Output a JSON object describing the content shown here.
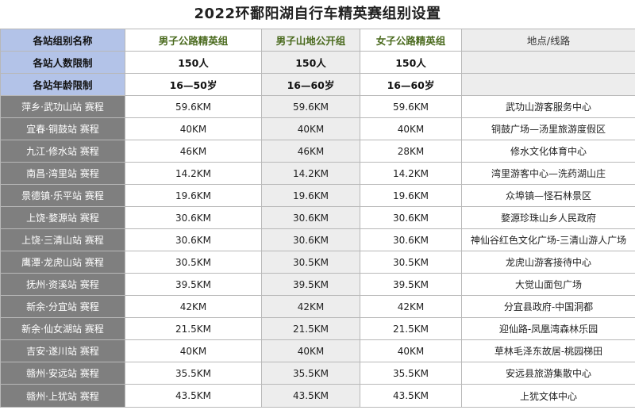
{
  "title": "2022环鄱阳湖自行车精英赛组别设置",
  "header": {
    "label": "各站组别名称",
    "groups": [
      "男子公路精英组",
      "男子山地公开组",
      "女子公路精英组"
    ],
    "location": "地点/线路"
  },
  "capacity": {
    "label": "各站人数限制",
    "values": [
      "150人",
      "150人",
      "150人"
    ]
  },
  "age": {
    "label": "各站年龄限制",
    "values": [
      "16—50岁",
      "16—60岁",
      "16—60岁"
    ]
  },
  "stations": [
    {
      "name": "萍乡·武功山站 赛程",
      "men_road": "59.6KM",
      "men_mtb": "59.6KM",
      "women_road": "59.6KM",
      "location": "武功山游客服务中心"
    },
    {
      "name": "宜春·铜鼓站 赛程",
      "men_road": "40KM",
      "men_mtb": "40KM",
      "women_road": "40KM",
      "location": "铜鼓广场—汤里旅游度假区"
    },
    {
      "name": "九江·修水站 赛程",
      "men_road": "46KM",
      "men_mtb": "46KM",
      "women_road": "28KM",
      "location": "修水文化体育中心"
    },
    {
      "name": "南昌·湾里站 赛程",
      "men_road": "14.2KM",
      "men_mtb": "14.2KM",
      "women_road": "14.2KM",
      "location": "湾里游客中心—洗药湖山庄"
    },
    {
      "name": "景德镇·乐平站 赛程",
      "men_road": "19.6KM",
      "men_mtb": "19.6KM",
      "women_road": "19.6KM",
      "location": "众埠镇—怪石林景区"
    },
    {
      "name": "上饶·婺源站 赛程",
      "men_road": "30.6KM",
      "men_mtb": "30.6KM",
      "women_road": "30.6KM",
      "location": "婺源珍珠山乡人民政府"
    },
    {
      "name": "上饶·三清山站 赛程",
      "men_road": "30.6KM",
      "men_mtb": "30.6KM",
      "women_road": "30.6KM",
      "location": "神仙谷红色文化广场-三清山游人广场"
    },
    {
      "name": "鹰潭·龙虎山站 赛程",
      "men_road": "30.5KM",
      "men_mtb": "30.5KM",
      "women_road": "30.5KM",
      "location": "龙虎山游客接待中心"
    },
    {
      "name": "抚州·资溪站 赛程",
      "men_road": "39.5KM",
      "men_mtb": "39.5KM",
      "women_road": "39.5KM",
      "location": "大觉山面包广场"
    },
    {
      "name": "新余·分宜站 赛程",
      "men_road": "42KM",
      "men_mtb": "42KM",
      "women_road": "42KM",
      "location": "分宜县政府-中国洞都"
    },
    {
      "name": "新余·仙女湖站 赛程",
      "men_road": "21.5KM",
      "men_mtb": "21.5KM",
      "women_road": "21.5KM",
      "location": "迎仙路-凤凰湾森林乐园"
    },
    {
      "name": "吉安·遂川站 赛程",
      "men_road": "40KM",
      "men_mtb": "40KM",
      "women_road": "40KM",
      "location": "草林毛泽东故居-桃园梯田"
    },
    {
      "name": "赣州·安远站 赛程",
      "men_road": "35.5KM",
      "men_mtb": "35.5KM",
      "women_road": "35.5KM",
      "location": "安远县旅游集散中心"
    },
    {
      "name": "赣州·上犹站 赛程",
      "men_road": "43.5KM",
      "men_mtb": "43.5KM",
      "women_road": "43.5KM",
      "location": "上犹文体中心"
    }
  ]
}
